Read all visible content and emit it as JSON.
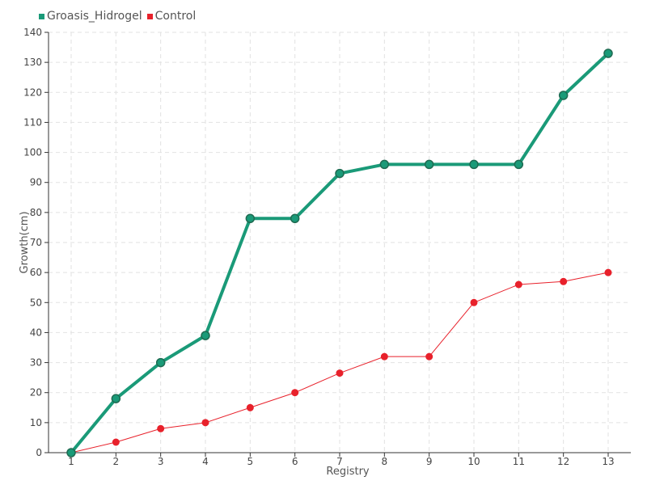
{
  "chart_data": {
    "type": "line",
    "categories": [
      "1",
      "2",
      "3",
      "4",
      "5",
      "6",
      "7",
      "8",
      "9",
      "10",
      "11",
      "12",
      "13"
    ],
    "series": [
      {
        "name": "Groasis_Hidrogel",
        "color": "#1a9a78",
        "values": [
          0,
          18,
          30,
          39,
          78,
          78,
          93,
          96,
          96,
          96,
          96,
          119,
          133
        ]
      },
      {
        "name": "Control",
        "color": "#e8212b",
        "values": [
          0,
          3.5,
          8,
          10,
          15,
          20,
          26.5,
          32,
          32,
          50,
          56,
          57,
          60
        ]
      }
    ],
    "xlabel": "Registry",
    "ylabel": "Growth(cm)",
    "ylim": [
      0,
      140
    ],
    "yticks": [
      0,
      10,
      20,
      30,
      40,
      50,
      60,
      70,
      80,
      90,
      100,
      110,
      120,
      130,
      140
    ],
    "grid": true,
    "legend_position": "top-left"
  }
}
